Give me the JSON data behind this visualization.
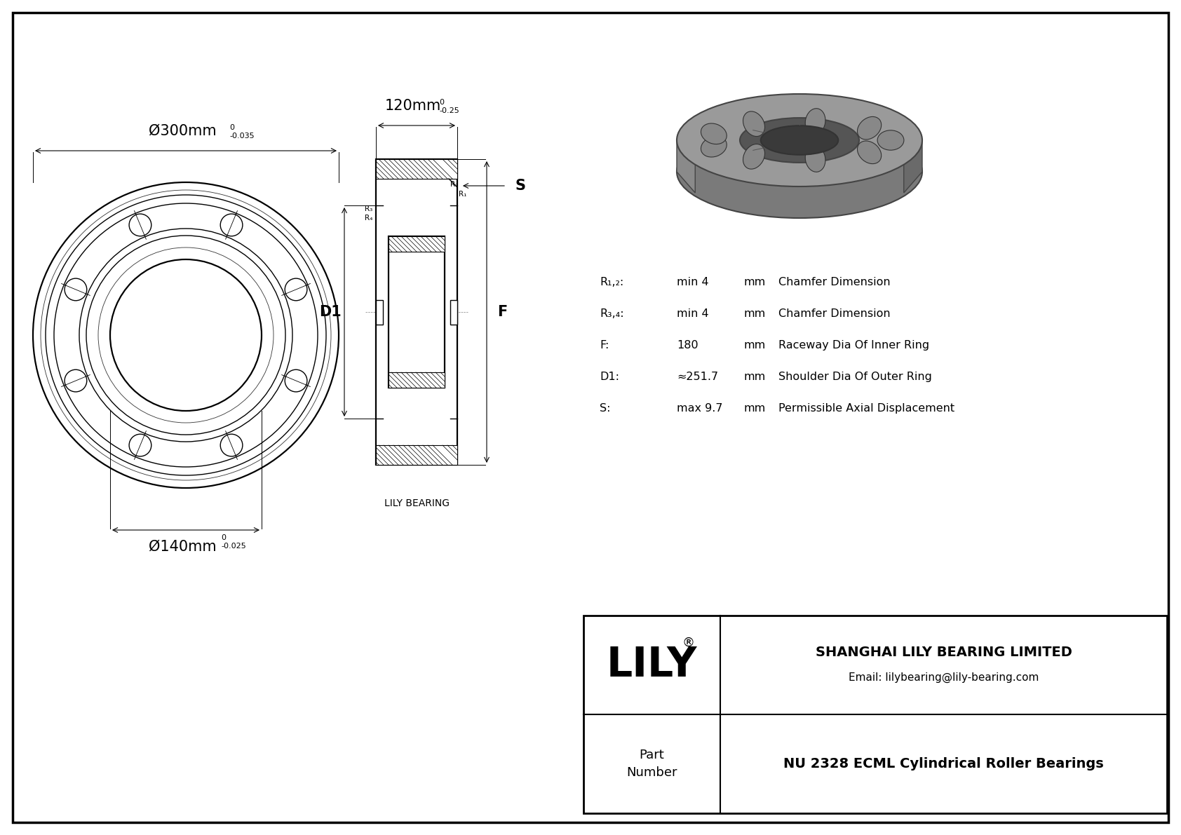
{
  "bg_color": "#ffffff",
  "dim_outer": "Ø300mm",
  "dim_outer_tol_top": "0",
  "dim_outer_tol_bot": "-0.035",
  "dim_inner": "Ø140mm",
  "dim_inner_tol_top": "0",
  "dim_inner_tol_bot": "-0.025",
  "dim_width": "120mm",
  "dim_width_tol_top": "0",
  "dim_width_tol_bot": "-0.25",
  "label_S": "S",
  "label_D1": "D1",
  "label_F": "F",
  "params": [
    {
      "name": "R₁,₂:",
      "value": "min 4",
      "unit": "mm",
      "desc": "Chamfer Dimension"
    },
    {
      "name": "R₃,₄:",
      "value": "min 4",
      "unit": "mm",
      "desc": "Chamfer Dimension"
    },
    {
      "name": "F:",
      "value": "180",
      "unit": "mm",
      "desc": "Raceway Dia Of Inner Ring"
    },
    {
      "name": "D1:",
      "value": "≈251.7",
      "unit": "mm",
      "desc": "Shoulder Dia Of Outer Ring"
    },
    {
      "name": "S:",
      "value": "max 9.7",
      "unit": "mm",
      "desc": "Permissible Axial Displacement"
    }
  ],
  "company": "SHANGHAI LILY BEARING LIMITED",
  "email": "Email: lilybearing@lily-bearing.com",
  "part_label": "Part\nNumber",
  "part_number": "NU 2328 ECML Cylindrical Roller Bearings",
  "lily_label": "LILY",
  "brand_registered": "®",
  "lily_bearing_label": "LILY BEARING"
}
